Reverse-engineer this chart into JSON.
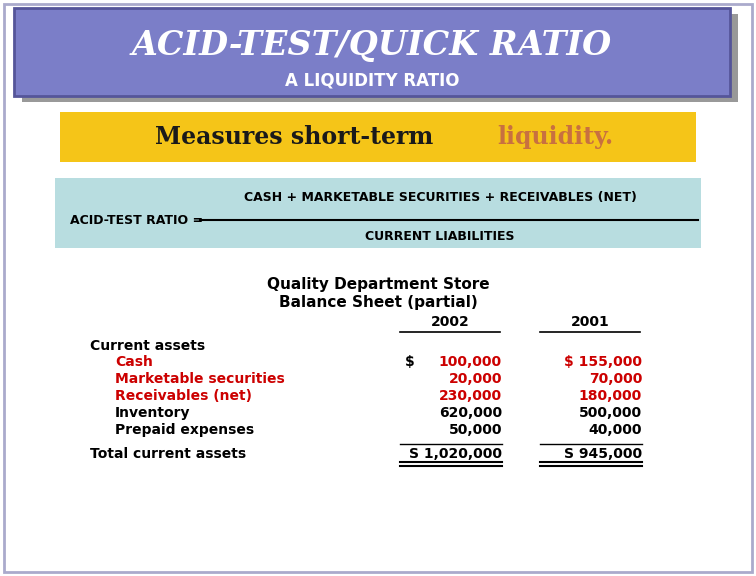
{
  "title_main": "ACID-TEST/QUICK RATIO",
  "title_sub": "A LIQUIDITY RATIO",
  "title_bg": "#7b7ec8",
  "title_text_color": "#ffffff",
  "measure_text1": "Measures short-term ",
  "measure_text2": "liquidity.",
  "measure_text_color1": "#1a1a1a",
  "measure_text_color2": "#c87040",
  "measure_bg": "#f5c518",
  "formula_bg": "#b8dde0",
  "formula_label": "ACID-TEST RATIO = ",
  "formula_numerator": "CASH + MARKETABLE SECURITIES + RECEIVABLES (NET)",
  "formula_denominator": "CURRENT LIABILITIES",
  "table_title1": "Quality Department Store",
  "table_title2": "Balance Sheet (partial)",
  "col_headers": [
    "2002",
    "2001"
  ],
  "row_label_main": "Current assets",
  "rows": [
    {
      "label": "Cash",
      "val2002": "100,000",
      "val2001": "$ 155,000",
      "color": "#cc0000",
      "dollar2002": "S"
    },
    {
      "label": "Marketable securities",
      "val2002": "20,000",
      "val2001": "70,000",
      "color": "#cc0000",
      "dollar2002": ""
    },
    {
      "label": "Receivables (net)",
      "val2002": "230,000",
      "val2001": "180,000",
      "color": "#cc0000",
      "dollar2002": ""
    },
    {
      "label": "Inventory",
      "val2002": "620,000",
      "val2001": "500,000",
      "color": "#000000",
      "dollar2002": ""
    },
    {
      "label": "Prepaid expenses",
      "val2002": "50,000",
      "val2001": "40,000",
      "color": "#000000",
      "dollar2002": ""
    }
  ],
  "total_label": "Total current assets",
  "total_2002": "S 1,020,000",
  "total_2001": "S 945,000",
  "bg_color": "#ffffff",
  "outer_border_color": "#aaaacc",
  "shadow_color": "#999999"
}
